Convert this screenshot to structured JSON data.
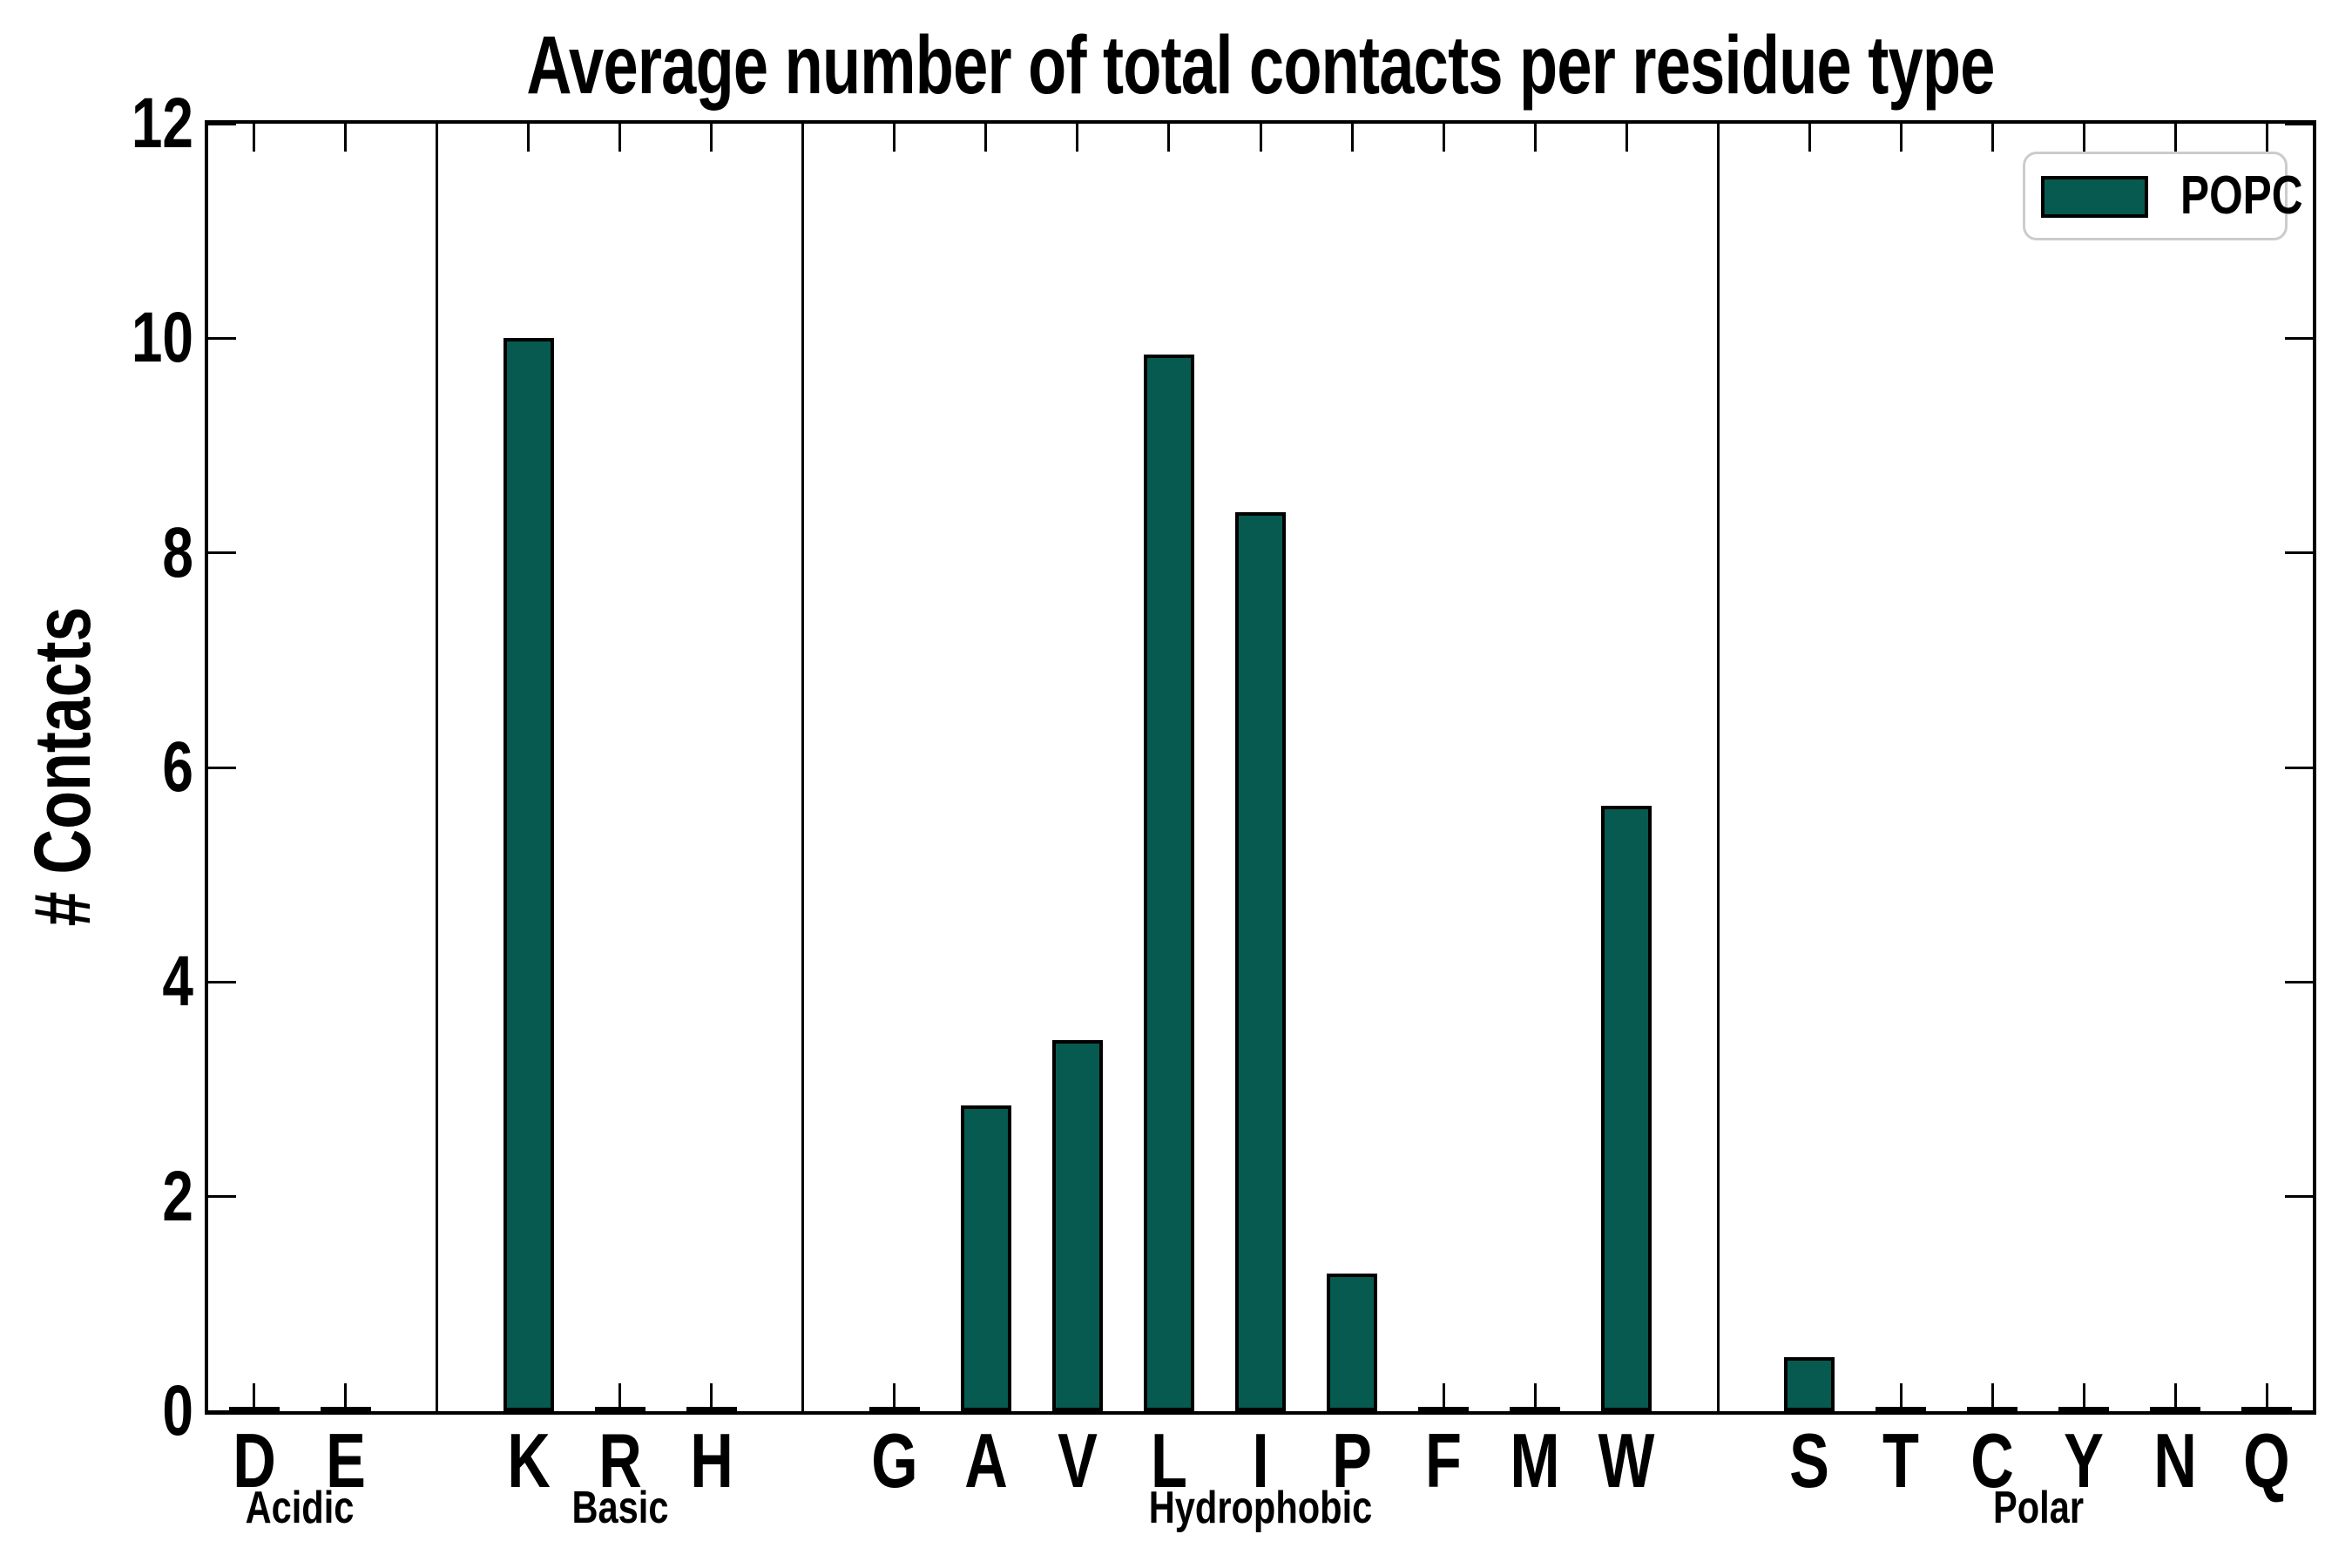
{
  "title": "Average number of total contacts per residue type",
  "ylabel": "# Contacts",
  "legend": {
    "label": "POPC"
  },
  "colors": {
    "bar_fill": "#075A4F",
    "bar_edge": "#000000",
    "axis": "#000000",
    "legend_border": "#cccccc",
    "background": "#ffffff"
  },
  "chart_data": {
    "type": "bar",
    "title": "Average number of total contacts per residue type",
    "xlabel": "",
    "ylabel": "# Contacts",
    "ylim": [
      0,
      12
    ],
    "yticks": [
      0,
      2,
      4,
      6,
      8,
      10,
      12
    ],
    "grid": false,
    "legend_position": "upper right",
    "legend_entries": [
      "POPC"
    ],
    "bar_color": "#075A4F",
    "groups": [
      {
        "label": "Acidic",
        "categories": [
          "D",
          "E"
        ],
        "values": [
          0.03,
          0.03
        ]
      },
      {
        "label": "Basic",
        "categories": [
          "K",
          "R",
          "H"
        ],
        "values": [
          10.0,
          0.03,
          0.04
        ]
      },
      {
        "label": "Hydrophobic",
        "categories": [
          "G",
          "A",
          "V",
          "L",
          "I",
          "P",
          "F",
          "M",
          "W"
        ],
        "values": [
          0.03,
          2.85,
          3.46,
          9.85,
          8.38,
          1.28,
          0.04,
          0.04,
          5.64
        ]
      },
      {
        "label": "Polar",
        "categories": [
          "S",
          "T",
          "C",
          "Y",
          "N",
          "Q"
        ],
        "values": [
          0.5,
          0.04,
          0.03,
          0.04,
          0.03,
          0.03
        ]
      }
    ]
  }
}
